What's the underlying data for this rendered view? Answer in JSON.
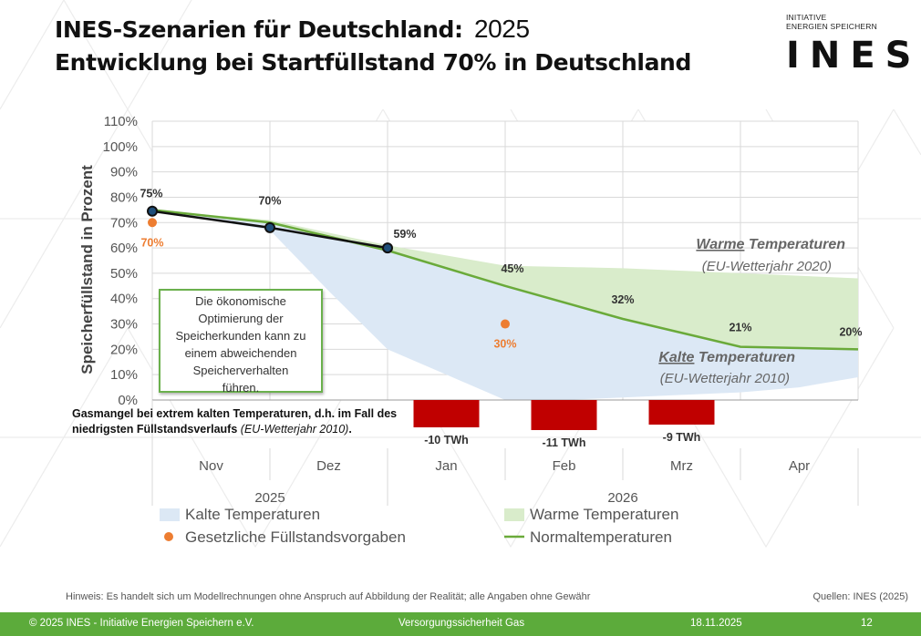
{
  "title": {
    "line1": "INES-Szenarien für Deutschland:",
    "year": "2025",
    "line2": "Entwicklung bei Startfüllstand 70% in Deutschland"
  },
  "logo": {
    "tagline1": "INITIATIVE",
    "tagline2": "ENERGIEN SPEICHERN",
    "wordmark": "INES"
  },
  "colors": {
    "normal": "#6aaa3a",
    "warm_fill": "#d9eccb",
    "cold_fill": "#dce8f5",
    "mandate": "#ed7d31",
    "deficit": "#c00000",
    "footer": "#5cab3b"
  },
  "chart_data": {
    "type": "area",
    "ylabel": "Speicherfüllstand in Prozent",
    "ylim": [
      0,
      110
    ],
    "yticks": [
      "0%",
      "10%",
      "20%",
      "30%",
      "40%",
      "50%",
      "60%",
      "70%",
      "80%",
      "90%",
      "100%",
      "110%"
    ],
    "months": [
      "Nov",
      "Dez",
      "Jan",
      "Feb",
      "Mrz",
      "Apr"
    ],
    "years": [
      {
        "label": "2025",
        "span": 2
      },
      {
        "label": "2026",
        "span": 4
      }
    ],
    "grid": true,
    "legend_position": "bottom",
    "x_unit": "month index (0 = start of Nov 2025)",
    "series": [
      {
        "name": "Normaltemperaturen",
        "x": [
          0,
          1,
          2,
          3,
          4,
          5,
          6
        ],
        "y": [
          75,
          70,
          59,
          45,
          32,
          21,
          20
        ],
        "labels": [
          "75%",
          "70%",
          "59%",
          "45%",
          "32%",
          "21%",
          "20%"
        ]
      },
      {
        "name": "Warme Temperaturen",
        "x": [
          0,
          1,
          2,
          3,
          4,
          5,
          6
        ],
        "y": [
          75,
          71,
          61,
          53,
          52,
          50,
          48
        ]
      },
      {
        "name": "Kalte Temperaturen",
        "x": [
          0,
          1,
          1.5,
          2,
          2.5,
          3,
          3.5,
          4,
          4.5,
          5,
          5.5,
          6
        ],
        "y": [
          75,
          67,
          43,
          20,
          10,
          0,
          0,
          1,
          2,
          3,
          5,
          9
        ]
      },
      {
        "name": "actual",
        "x": [
          0,
          1,
          2
        ],
        "y": [
          74.5,
          68,
          60
        ]
      }
    ],
    "mandates": {
      "name": "Gesetzliche Füllstandsvorgaben",
      "points": [
        {
          "x": 0,
          "y": 70,
          "label": "70%"
        },
        {
          "x": 3,
          "y": 30,
          "label": "30%"
        }
      ]
    },
    "deficits": [
      {
        "month": "Jan",
        "value_twh": -10,
        "label": "-10 TWh"
      },
      {
        "month": "Feb",
        "value_twh": -11,
        "label": "-11 TWh"
      },
      {
        "month": "Mrz",
        "value_twh": -9,
        "label": "-9 TWh"
      }
    ],
    "annotations": {
      "warm_title": "Warme Temperaturen",
      "warm_underlined": "Warme",
      "warm_rest": "Temperaturen",
      "warm_sub": "(EU-Wetterjahr 2020)",
      "cold_underlined": "Kalte",
      "cold_rest": "Temperaturen",
      "cold_sub": "(EU-Wetterjahr 2010)"
    },
    "legend": [
      {
        "label": "Kalte Temperaturen",
        "kind": "area",
        "color": "#dce8f5"
      },
      {
        "label": "Warme Temperaturen",
        "kind": "area",
        "color": "#d9eccb"
      },
      {
        "label": "Gesetzliche Füllstandsvorgaben",
        "kind": "dot",
        "color": "#ed7d31"
      },
      {
        "label": "Normaltemperaturen",
        "kind": "line",
        "color": "#6aaa3a"
      }
    ]
  },
  "callout": {
    "lines": [
      "Die ökonomische",
      "Optimierung der",
      "Speicherkunden kann zu",
      "einem abweichenden",
      "Speicherverhalten",
      "führen."
    ]
  },
  "shortage_note": {
    "bold": "Gasmangel bei extrem kalten Temperaturen, d.h. im Fall des niedrigsten Füllstandsverlaufs",
    "italic": "(EU-Wetterjahr 2010)",
    "end": "."
  },
  "note": "Hinweis: Es handelt sich um Modellrechnungen ohne Anspruch auf Abbildung der Realität; alle Angaben ohne Gewähr",
  "sources": "Quellen: INES (2025)",
  "footer": {
    "copyright": "© 2025 INES - Initiative Energien Speichern e.V.",
    "topic": "Versorgungssicherheit Gas",
    "date": "18.11.2025",
    "page": "12"
  }
}
